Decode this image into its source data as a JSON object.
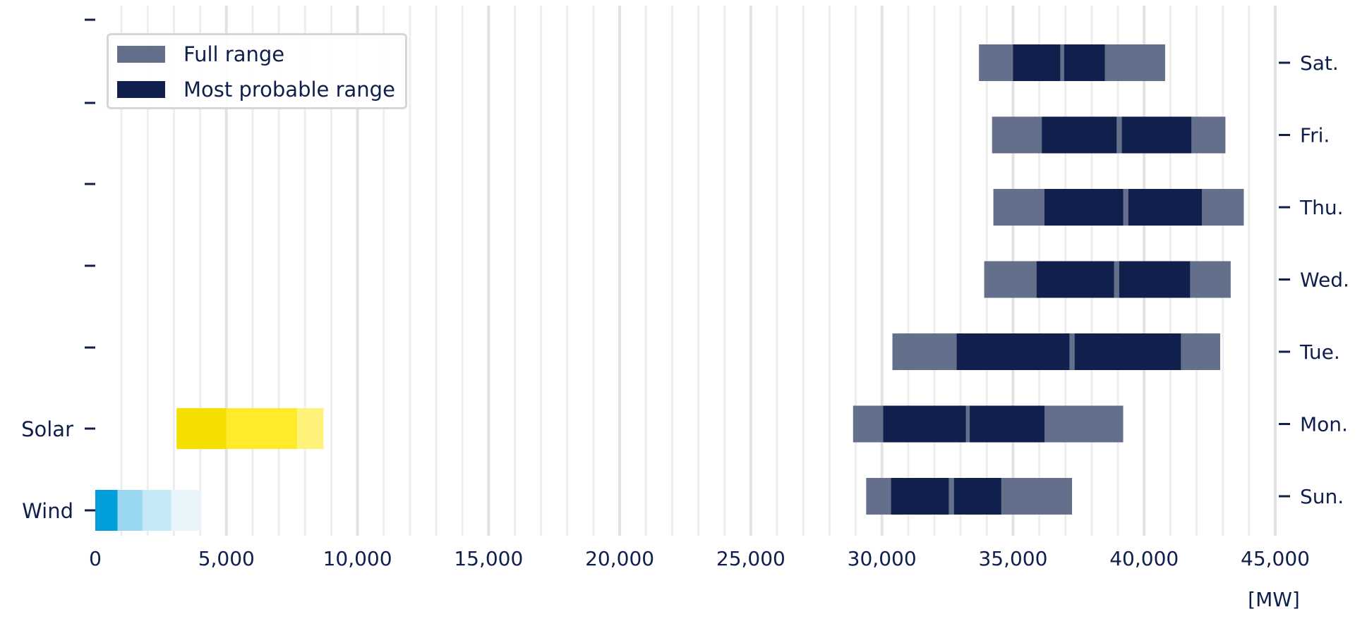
{
  "chart_data": {
    "type": "bar",
    "unit_label": "[MW]",
    "xlim": [
      0,
      45000
    ],
    "x_ticks": [
      0,
      5000,
      10000,
      15000,
      20000,
      25000,
      30000,
      35000,
      40000,
      45000
    ],
    "x_tick_labels": [
      "0",
      "5,000",
      "10,000",
      "15,000",
      "20,000",
      "25,000",
      "30,000",
      "35,000",
      "40,000",
      "45,000"
    ],
    "grid": "vertical",
    "legend": {
      "position": "top-left",
      "items": [
        {
          "label": "Full range",
          "color": "#646f8c"
        },
        {
          "label": "Most probable range",
          "color": "#111f4c"
        }
      ]
    },
    "left_axis_labels": [
      "Solar",
      "Wind"
    ],
    "right_axis_labels": [
      "Sat.",
      "Fri.",
      "Thu.",
      "Wed.",
      "Tue.",
      "Mon.",
      "Sun."
    ],
    "colors": {
      "full_range": "#646f8c",
      "most_probable": "#111f4c",
      "text": "#0f1f4b",
      "grid": "#eeeeee",
      "grid_major": "#e2e2e2"
    },
    "demand": [
      {
        "day": "Sat.",
        "full": [
          33700,
          40800
        ],
        "probable": [
          [
            35000,
            36800
          ],
          [
            36950,
            38500
          ]
        ]
      },
      {
        "day": "Fri.",
        "full": [
          34200,
          43100
        ],
        "probable": [
          [
            36100,
            38950
          ],
          [
            39150,
            41800
          ]
        ]
      },
      {
        "day": "Thu.",
        "full": [
          34250,
          43800
        ],
        "probable": [
          [
            36200,
            39200
          ],
          [
            39400,
            42200
          ]
        ]
      },
      {
        "day": "Wed.",
        "full": [
          33900,
          43300
        ],
        "probable": [
          [
            35900,
            38850
          ],
          [
            39050,
            41750
          ]
        ]
      },
      {
        "day": "Tue.",
        "full": [
          30400,
          42900
        ],
        "probable": [
          [
            32850,
            37150
          ],
          [
            37350,
            41400
          ]
        ]
      },
      {
        "day": "Mon.",
        "full": [
          28900,
          39200
        ],
        "probable": [
          [
            30050,
            33200
          ],
          [
            33350,
            36200
          ]
        ]
      },
      {
        "day": "Sun.",
        "full": [
          29400,
          37250
        ],
        "probable": [
          [
            30350,
            32550
          ],
          [
            32750,
            34550
          ]
        ]
      }
    ],
    "renewables": [
      {
        "label": "Solar",
        "segments": [
          {
            "range": [
              3100,
              5000
            ],
            "color": "#f5de00"
          },
          {
            "range": [
              5000,
              7700
            ],
            "color": "#ffeb2a"
          },
          {
            "range": [
              7700,
              8700
            ],
            "color": "#fff27a"
          }
        ]
      },
      {
        "label": "Wind",
        "segments": [
          {
            "range": [
              0,
              850
            ],
            "color": "#009fdc"
          },
          {
            "range": [
              850,
              1800
            ],
            "color": "#99d8f0"
          },
          {
            "range": [
              1800,
              2900
            ],
            "color": "#c5e8f6"
          },
          {
            "range": [
              2900,
              4050
            ],
            "color": "#e9f5fb"
          }
        ]
      }
    ]
  }
}
